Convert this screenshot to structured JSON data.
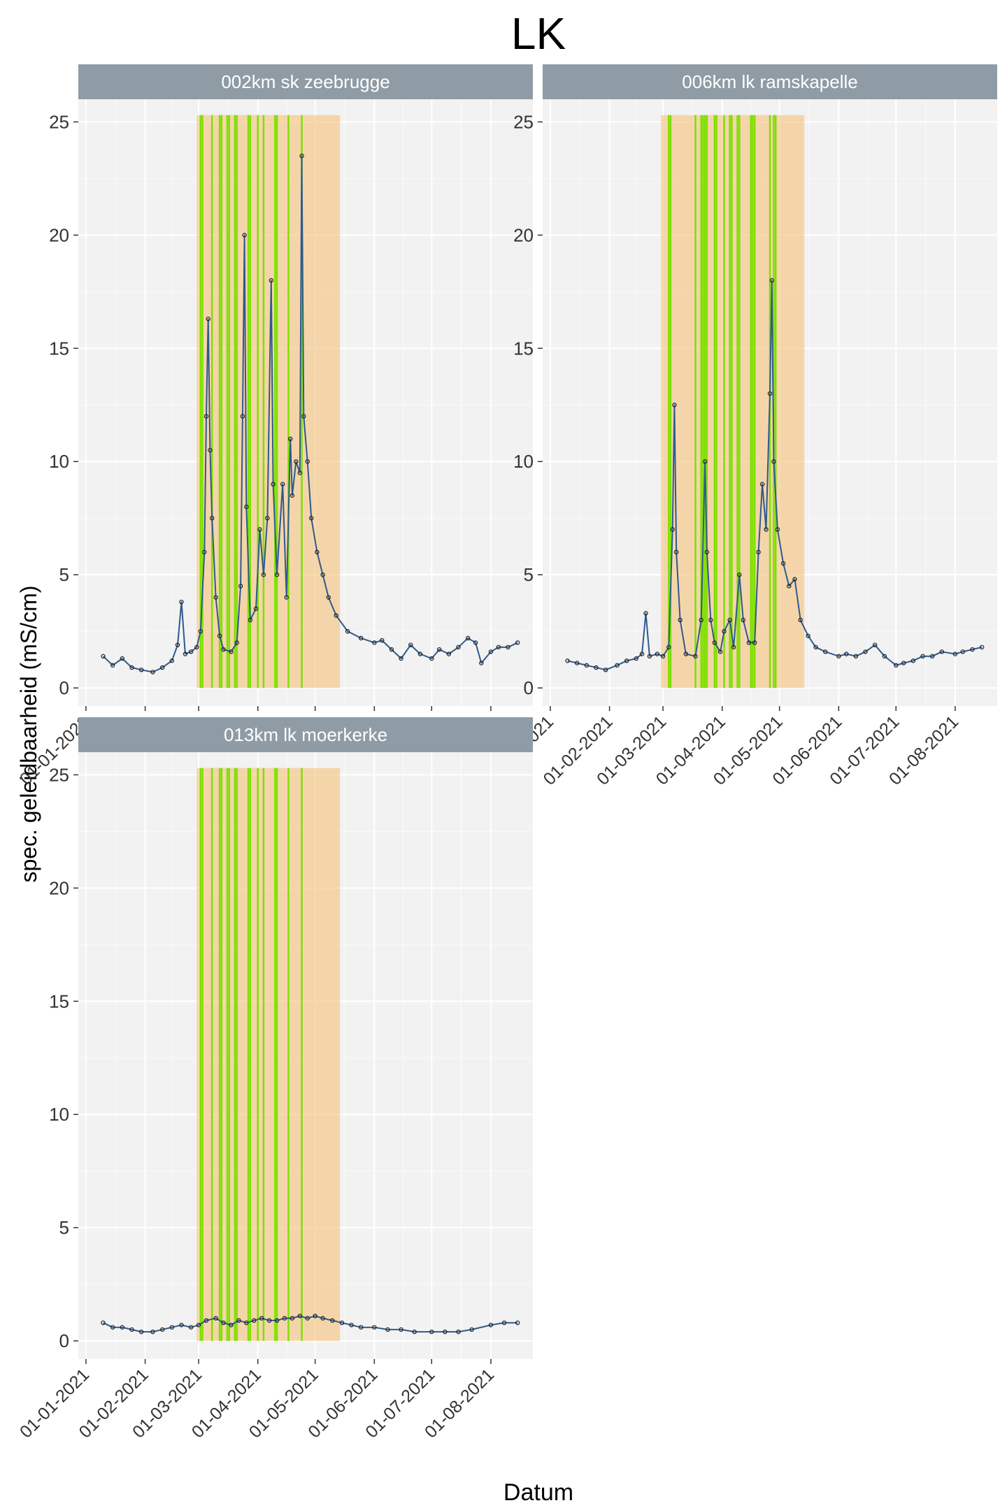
{
  "chart_data": {
    "type": "line",
    "title": "LK",
    "xlabel": "Datum",
    "ylabel": "spec. geleidbaarheid (mS/cm)",
    "ylim": [
      -0.8,
      26
    ],
    "xlim": [
      "2020-12-28",
      "2021-08-23"
    ],
    "y_ticks": [
      0,
      5,
      10,
      15,
      20,
      25
    ],
    "x_ticks": [
      "01-01-2021",
      "01-02-2021",
      "01-03-2021",
      "01-04-2021",
      "01-05-2021",
      "01-06-2021",
      "01-07-2021",
      "01-08-2021"
    ],
    "grid": true,
    "layout": "facet_wrap 2 columns",
    "colors": {
      "line": "#2e5a8c",
      "points": "#222222",
      "period_fill": "#f5c27a",
      "event_line": "#7ee000",
      "strip": "#8f9ca6",
      "panel_bg": "#f2f2f2"
    },
    "period": {
      "start": "2021-02-28",
      "end": "2021-05-14",
      "ymax": 25.3
    },
    "panels": [
      {
        "label": "002km sk zeebrugge",
        "event_dates": [
          "2021-03-02",
          "2021-03-03",
          "2021-03-08",
          "2021-03-12",
          "2021-03-13",
          "2021-03-16",
          "2021-03-17",
          "2021-03-20",
          "2021-03-21",
          "2021-03-27",
          "2021-03-28",
          "2021-04-01",
          "2021-04-04",
          "2021-04-10",
          "2021-04-11",
          "2021-04-17",
          "2021-04-24"
        ],
        "series": [
          {
            "x": "2021-01-10",
            "y": 1.4
          },
          {
            "x": "2021-01-15",
            "y": 1.0
          },
          {
            "x": "2021-01-20",
            "y": 1.3
          },
          {
            "x": "2021-01-25",
            "y": 0.9
          },
          {
            "x": "2021-01-30",
            "y": 0.8
          },
          {
            "x": "2021-02-05",
            "y": 0.7
          },
          {
            "x": "2021-02-10",
            "y": 0.9
          },
          {
            "x": "2021-02-15",
            "y": 1.2
          },
          {
            "x": "2021-02-18",
            "y": 1.9
          },
          {
            "x": "2021-02-20",
            "y": 3.8
          },
          {
            "x": "2021-02-22",
            "y": 1.5
          },
          {
            "x": "2021-02-25",
            "y": 1.6
          },
          {
            "x": "2021-02-28",
            "y": 1.8
          },
          {
            "x": "2021-03-02",
            "y": 2.5
          },
          {
            "x": "2021-03-04",
            "y": 6.0
          },
          {
            "x": "2021-03-05",
            "y": 12.0
          },
          {
            "x": "2021-03-06",
            "y": 16.3
          },
          {
            "x": "2021-03-07",
            "y": 10.5
          },
          {
            "x": "2021-03-08",
            "y": 7.5
          },
          {
            "x": "2021-03-10",
            "y": 4.0
          },
          {
            "x": "2021-03-12",
            "y": 2.3
          },
          {
            "x": "2021-03-14",
            "y": 1.7
          },
          {
            "x": "2021-03-18",
            "y": 1.6
          },
          {
            "x": "2021-03-21",
            "y": 2.0
          },
          {
            "x": "2021-03-23",
            "y": 4.5
          },
          {
            "x": "2021-03-24",
            "y": 12.0
          },
          {
            "x": "2021-03-25",
            "y": 20.0
          },
          {
            "x": "2021-03-26",
            "y": 8.0
          },
          {
            "x": "2021-03-28",
            "y": 3.0
          },
          {
            "x": "2021-03-31",
            "y": 3.5
          },
          {
            "x": "2021-04-02",
            "y": 7.0
          },
          {
            "x": "2021-04-04",
            "y": 5.0
          },
          {
            "x": "2021-04-06",
            "y": 7.5
          },
          {
            "x": "2021-04-08",
            "y": 18.0
          },
          {
            "x": "2021-04-09",
            "y": 9.0
          },
          {
            "x": "2021-04-11",
            "y": 5.0
          },
          {
            "x": "2021-04-14",
            "y": 9.0
          },
          {
            "x": "2021-04-16",
            "y": 4.0
          },
          {
            "x": "2021-04-18",
            "y": 11.0
          },
          {
            "x": "2021-04-19",
            "y": 8.5
          },
          {
            "x": "2021-04-21",
            "y": 10.0
          },
          {
            "x": "2021-04-23",
            "y": 9.5
          },
          {
            "x": "2021-04-24",
            "y": 23.5
          },
          {
            "x": "2021-04-25",
            "y": 12.0
          },
          {
            "x": "2021-04-27",
            "y": 10.0
          },
          {
            "x": "2021-04-29",
            "y": 7.5
          },
          {
            "x": "2021-05-02",
            "y": 6.0
          },
          {
            "x": "2021-05-05",
            "y": 5.0
          },
          {
            "x": "2021-05-08",
            "y": 4.0
          },
          {
            "x": "2021-05-12",
            "y": 3.2
          },
          {
            "x": "2021-05-18",
            "y": 2.5
          },
          {
            "x": "2021-05-25",
            "y": 2.2
          },
          {
            "x": "2021-06-01",
            "y": 2.0
          },
          {
            "x": "2021-06-05",
            "y": 2.1
          },
          {
            "x": "2021-06-10",
            "y": 1.7
          },
          {
            "x": "2021-06-15",
            "y": 1.3
          },
          {
            "x": "2021-06-20",
            "y": 1.9
          },
          {
            "x": "2021-06-25",
            "y": 1.5
          },
          {
            "x": "2021-07-01",
            "y": 1.3
          },
          {
            "x": "2021-07-05",
            "y": 1.7
          },
          {
            "x": "2021-07-10",
            "y": 1.5
          },
          {
            "x": "2021-07-15",
            "y": 1.8
          },
          {
            "x": "2021-07-20",
            "y": 2.2
          },
          {
            "x": "2021-07-24",
            "y": 2.0
          },
          {
            "x": "2021-07-27",
            "y": 1.1
          },
          {
            "x": "2021-08-01",
            "y": 1.6
          },
          {
            "x": "2021-08-05",
            "y": 1.8
          },
          {
            "x": "2021-08-10",
            "y": 1.8
          },
          {
            "x": "2021-08-15",
            "y": 2.0
          }
        ]
      },
      {
        "label": "006km lk ramskapelle",
        "event_dates": [
          "2021-03-04",
          "2021-03-05",
          "2021-03-18",
          "2021-03-21",
          "2021-03-22",
          "2021-03-23",
          "2021-03-24",
          "2021-03-28",
          "2021-03-29",
          "2021-04-02",
          "2021-04-05",
          "2021-04-06",
          "2021-04-09",
          "2021-04-10",
          "2021-04-16",
          "2021-04-17",
          "2021-04-18",
          "2021-04-26",
          "2021-04-28",
          "2021-04-29"
        ],
        "series": [
          {
            "x": "2021-01-10",
            "y": 1.2
          },
          {
            "x": "2021-01-15",
            "y": 1.1
          },
          {
            "x": "2021-01-20",
            "y": 1.0
          },
          {
            "x": "2021-01-25",
            "y": 0.9
          },
          {
            "x": "2021-01-30",
            "y": 0.8
          },
          {
            "x": "2021-02-05",
            "y": 1.0
          },
          {
            "x": "2021-02-10",
            "y": 1.2
          },
          {
            "x": "2021-02-15",
            "y": 1.3
          },
          {
            "x": "2021-02-18",
            "y": 1.5
          },
          {
            "x": "2021-02-20",
            "y": 3.3
          },
          {
            "x": "2021-02-22",
            "y": 1.4
          },
          {
            "x": "2021-02-26",
            "y": 1.5
          },
          {
            "x": "2021-03-01",
            "y": 1.4
          },
          {
            "x": "2021-03-04",
            "y": 1.8
          },
          {
            "x": "2021-03-06",
            "y": 7.0
          },
          {
            "x": "2021-03-07",
            "y": 12.5
          },
          {
            "x": "2021-03-08",
            "y": 6.0
          },
          {
            "x": "2021-03-10",
            "y": 3.0
          },
          {
            "x": "2021-03-13",
            "y": 1.5
          },
          {
            "x": "2021-03-18",
            "y": 1.4
          },
          {
            "x": "2021-03-21",
            "y": 3.0
          },
          {
            "x": "2021-03-23",
            "y": 10.0
          },
          {
            "x": "2021-03-24",
            "y": 6.0
          },
          {
            "x": "2021-03-26",
            "y": 3.0
          },
          {
            "x": "2021-03-28",
            "y": 2.0
          },
          {
            "x": "2021-03-31",
            "y": 1.6
          },
          {
            "x": "2021-04-02",
            "y": 2.5
          },
          {
            "x": "2021-04-05",
            "y": 3.0
          },
          {
            "x": "2021-04-07",
            "y": 1.8
          },
          {
            "x": "2021-04-10",
            "y": 5.0
          },
          {
            "x": "2021-04-12",
            "y": 3.0
          },
          {
            "x": "2021-04-15",
            "y": 2.0
          },
          {
            "x": "2021-04-18",
            "y": 2.0
          },
          {
            "x": "2021-04-20",
            "y": 6.0
          },
          {
            "x": "2021-04-22",
            "y": 9.0
          },
          {
            "x": "2021-04-24",
            "y": 7.0
          },
          {
            "x": "2021-04-26",
            "y": 13.0
          },
          {
            "x": "2021-04-27",
            "y": 18.0
          },
          {
            "x": "2021-04-28",
            "y": 10.0
          },
          {
            "x": "2021-04-30",
            "y": 7.0
          },
          {
            "x": "2021-05-03",
            "y": 5.5
          },
          {
            "x": "2021-05-06",
            "y": 4.5
          },
          {
            "x": "2021-05-09",
            "y": 4.8
          },
          {
            "x": "2021-05-12",
            "y": 3.0
          },
          {
            "x": "2021-05-16",
            "y": 2.3
          },
          {
            "x": "2021-05-20",
            "y": 1.8
          },
          {
            "x": "2021-05-25",
            "y": 1.6
          },
          {
            "x": "2021-06-01",
            "y": 1.4
          },
          {
            "x": "2021-06-05",
            "y": 1.5
          },
          {
            "x": "2021-06-10",
            "y": 1.4
          },
          {
            "x": "2021-06-15",
            "y": 1.6
          },
          {
            "x": "2021-06-20",
            "y": 1.9
          },
          {
            "x": "2021-06-25",
            "y": 1.4
          },
          {
            "x": "2021-07-01",
            "y": 1.0
          },
          {
            "x": "2021-07-05",
            "y": 1.1
          },
          {
            "x": "2021-07-10",
            "y": 1.2
          },
          {
            "x": "2021-07-15",
            "y": 1.4
          },
          {
            "x": "2021-07-20",
            "y": 1.4
          },
          {
            "x": "2021-07-25",
            "y": 1.6
          },
          {
            "x": "2021-08-01",
            "y": 1.5
          },
          {
            "x": "2021-08-05",
            "y": 1.6
          },
          {
            "x": "2021-08-10",
            "y": 1.7
          },
          {
            "x": "2021-08-15",
            "y": 1.8
          }
        ]
      },
      {
        "label": "013km lk moerkerke",
        "event_dates": [
          "2021-03-02",
          "2021-03-03",
          "2021-03-08",
          "2021-03-12",
          "2021-03-13",
          "2021-03-16",
          "2021-03-17",
          "2021-03-20",
          "2021-03-21",
          "2021-03-27",
          "2021-03-28",
          "2021-04-01",
          "2021-04-04",
          "2021-04-10",
          "2021-04-11",
          "2021-04-17",
          "2021-04-24"
        ],
        "series": [
          {
            "x": "2021-01-10",
            "y": 0.8
          },
          {
            "x": "2021-01-15",
            "y": 0.6
          },
          {
            "x": "2021-01-20",
            "y": 0.6
          },
          {
            "x": "2021-01-25",
            "y": 0.5
          },
          {
            "x": "2021-01-30",
            "y": 0.4
          },
          {
            "x": "2021-02-05",
            "y": 0.4
          },
          {
            "x": "2021-02-10",
            "y": 0.5
          },
          {
            "x": "2021-02-15",
            "y": 0.6
          },
          {
            "x": "2021-02-20",
            "y": 0.7
          },
          {
            "x": "2021-02-25",
            "y": 0.6
          },
          {
            "x": "2021-03-01",
            "y": 0.7
          },
          {
            "x": "2021-03-05",
            "y": 0.9
          },
          {
            "x": "2021-03-10",
            "y": 1.0
          },
          {
            "x": "2021-03-14",
            "y": 0.8
          },
          {
            "x": "2021-03-18",
            "y": 0.7
          },
          {
            "x": "2021-03-22",
            "y": 0.9
          },
          {
            "x": "2021-03-26",
            "y": 0.8
          },
          {
            "x": "2021-03-30",
            "y": 0.9
          },
          {
            "x": "2021-04-03",
            "y": 1.0
          },
          {
            "x": "2021-04-07",
            "y": 0.9
          },
          {
            "x": "2021-04-11",
            "y": 0.9
          },
          {
            "x": "2021-04-15",
            "y": 1.0
          },
          {
            "x": "2021-04-19",
            "y": 1.0
          },
          {
            "x": "2021-04-23",
            "y": 1.1
          },
          {
            "x": "2021-04-27",
            "y": 1.0
          },
          {
            "x": "2021-05-01",
            "y": 1.1
          },
          {
            "x": "2021-05-05",
            "y": 1.0
          },
          {
            "x": "2021-05-10",
            "y": 0.9
          },
          {
            "x": "2021-05-15",
            "y": 0.8
          },
          {
            "x": "2021-05-20",
            "y": 0.7
          },
          {
            "x": "2021-05-25",
            "y": 0.6
          },
          {
            "x": "2021-06-01",
            "y": 0.6
          },
          {
            "x": "2021-06-08",
            "y": 0.5
          },
          {
            "x": "2021-06-15",
            "y": 0.5
          },
          {
            "x": "2021-06-22",
            "y": 0.4
          },
          {
            "x": "2021-07-01",
            "y": 0.4
          },
          {
            "x": "2021-07-08",
            "y": 0.4
          },
          {
            "x": "2021-07-15",
            "y": 0.4
          },
          {
            "x": "2021-07-22",
            "y": 0.5
          },
          {
            "x": "2021-08-01",
            "y": 0.7
          },
          {
            "x": "2021-08-08",
            "y": 0.8
          },
          {
            "x": "2021-08-15",
            "y": 0.8
          }
        ]
      }
    ]
  }
}
